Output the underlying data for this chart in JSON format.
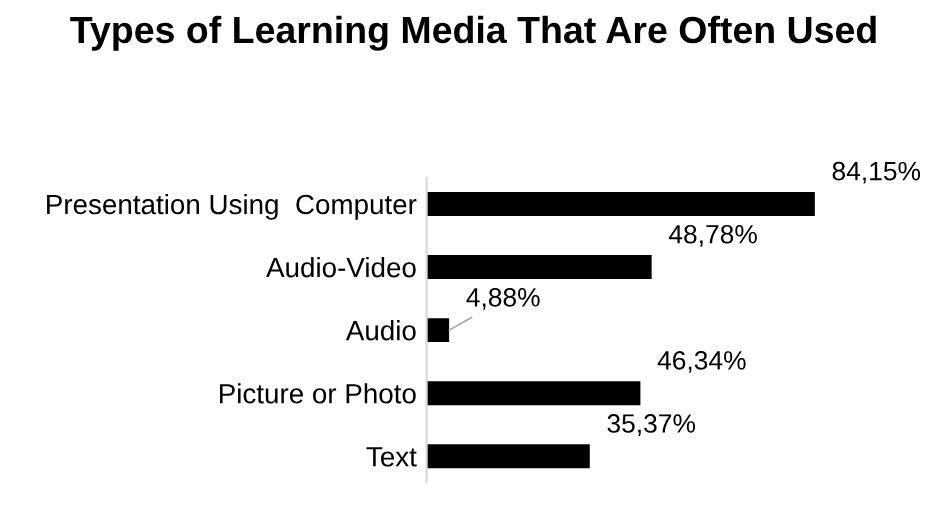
{
  "chart_data": {
    "type": "bar",
    "orientation": "horizontal",
    "title": "Types of Learning Media That Are Often Used",
    "categories": [
      "Presentation Using  Computer",
      "Audio-Video",
      "Audio",
      "Picture or Photo",
      "Text"
    ],
    "values": [
      84.15,
      48.78,
      4.88,
      46.34,
      35.37
    ],
    "value_labels": [
      "84,15%",
      "48,78%",
      "4,88%",
      "46,34%",
      "35,37%"
    ],
    "color": "#000000",
    "tick_labels": "y",
    "grid": false,
    "legend": false
  }
}
